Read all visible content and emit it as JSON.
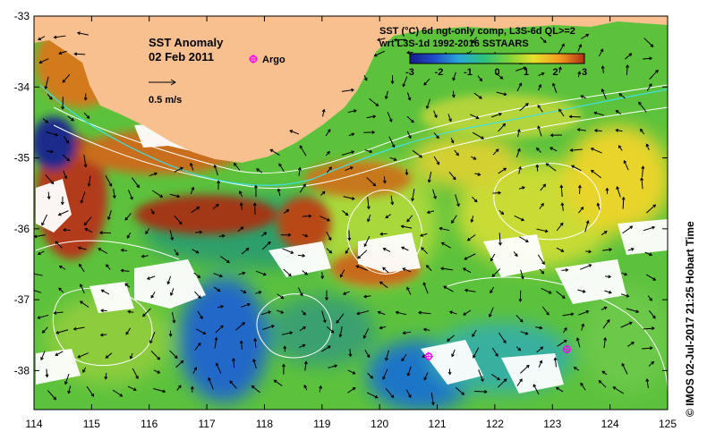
{
  "title": "SST Anomaly",
  "date": "02 Feb 2011",
  "argo_label": "Argo",
  "scale_label": "0.5 m/s",
  "product_line1": "SST (°C) 6d ngt-only comp, L3S-6d QL>=2",
  "product_line2": "wrt L3S-1d 1992-2016 SSTAARS",
  "credit": "© IMOS 02-Jul-2017 21:25 Hobart Time",
  "colors": {
    "land": "#f8c08e",
    "argo": "#ff00ff",
    "contour": "#ffffff",
    "shelf": "#40e0e0"
  },
  "colorbar": {
    "ticks": [
      "-3",
      "-2",
      "-1",
      "0",
      "1",
      "2",
      "3"
    ],
    "stops": [
      "#1a1a8c",
      "#1f4ec8",
      "#2aa6d8",
      "#2ec27a",
      "#7fd43a",
      "#e8e02a",
      "#f49a22",
      "#b03018"
    ]
  },
  "axes": {
    "xticks": [
      "114",
      "115",
      "116",
      "117",
      "118",
      "119",
      "120",
      "121",
      "122",
      "123",
      "124",
      "125"
    ],
    "yticks": [
      "-33",
      "-34",
      "-35",
      "-36",
      "-37",
      "-38"
    ],
    "xlim": [
      114,
      125
    ],
    "ylim": [
      -38.55,
      -33
    ]
  },
  "argo_floats": [
    {
      "lon": 120.85,
      "lat": -37.8
    },
    {
      "lon": 123.25,
      "lat": -37.7
    }
  ]
}
